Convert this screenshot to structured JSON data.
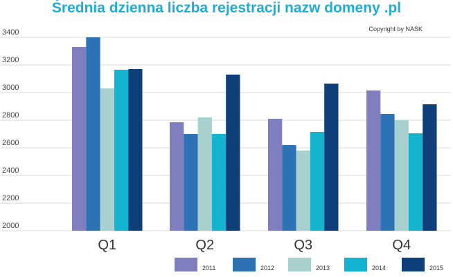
{
  "chart_data": {
    "type": "bar",
    "title": "Średnia dzienna liczba rejestracji nazw domeny .pl",
    "copyright": "Copyright by NASK",
    "categories": [
      "Q1",
      "Q2",
      "Q3",
      "Q4"
    ],
    "ylim": [
      2000,
      3400
    ],
    "yticks": [
      "2000",
      "2200",
      "2400",
      "2600",
      "2800",
      "3000",
      "3200",
      "3400"
    ],
    "legend_position": "bottom-right",
    "series": [
      {
        "name": "2011",
        "color": "#7f7fbf",
        "values": [
          3330,
          2785,
          2810,
          3015
        ]
      },
      {
        "name": "2012",
        "color": "#2c72b4",
        "values": [
          3400,
          2700,
          2620,
          2845
        ]
      },
      {
        "name": "2013",
        "color": "#a8d0cf",
        "values": [
          3030,
          2820,
          2580,
          2800
        ]
      },
      {
        "name": "2014",
        "color": "#14b3cf",
        "values": [
          3165,
          2700,
          2715,
          2705
        ]
      },
      {
        "name": "2015",
        "color": "#0f3f78",
        "values": [
          3170,
          3130,
          3065,
          2915
        ]
      }
    ]
  }
}
